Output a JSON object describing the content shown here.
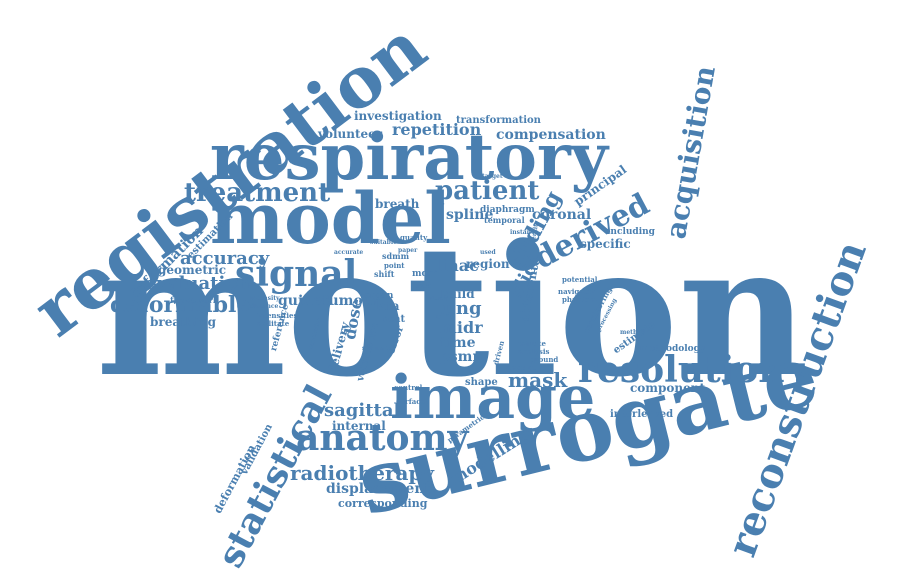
{
  "cloud": {
    "color": "#4a7fb0",
    "background": "#ffffff",
    "words": {
      "motion": "motion",
      "surrogate": "surrogate",
      "registration": "registration",
      "respiratory": "respiratory",
      "model": "model",
      "image": "image",
      "reconstruction": "reconstruction",
      "statistical": "statistical",
      "anatomy": "anatomy",
      "resolution": "resolution",
      "signal": "signal",
      "treatment": "treatment",
      "derived": "derived",
      "acquisition": "acquisition",
      "patient": "patient",
      "sliding": "sliding",
      "slice": "slice",
      "deformable": "deformable",
      "evaluation": "evaluation",
      "accuracy": "accuracy",
      "radiotherapy": "radiotherapy",
      "mask": "mask",
      "sagittal": "sagittal",
      "modelling": "modelling",
      "displacement": "displacement",
      "corresponding": "corresponding",
      "information": "information",
      "deformation": "deformation",
      "validation": "validation",
      "geometric": "geometric",
      "estimation": "estimation",
      "guided": "guided",
      "tumour": "tumour",
      "breathing": "breathing",
      "framework": "framework",
      "volunteer": "volunteer",
      "repetition": "repetition",
      "investigation": "investigation",
      "transformation": "transformation",
      "compensation": "compensation",
      "breath": "breath",
      "spline": "spline",
      "coronal": "coronal",
      "principal": "principal",
      "specific": "specific",
      "including": "including",
      "diaphragm": "diaphragm",
      "temporal": "temporal",
      "linac": "linac",
      "region": "region",
      "lung": "lung",
      "build": "build",
      "midr": "midr",
      "time": "time",
      "psmm": "psmm",
      "cine": "cine",
      "data": "data",
      "xcat": "xcat",
      "dose": "dose",
      "delivery": "delivery",
      "volumetric": "volumetric",
      "error": "error",
      "internal": "internal",
      "shape": "shape",
      "component": "component",
      "interleaved": "interleaved",
      "methodology": "methodology",
      "estimate": "estimate",
      "different": "different",
      "monitoring": "monitoring",
      "navigator": "navigator",
      "phantom": "phantom",
      "potential": "potential",
      "analysis": "analysis",
      "ground": "ground",
      "amount": "amount",
      "minute": "minute",
      "driven": "driven",
      "parametric": "parametric",
      "surface": "surface",
      "control": "control",
      "intensities": "intensities",
      "facilitate": "facilitate",
      "reference": "reference",
      "intensity": "intensity",
      "distance": "distance",
      "organ": "organ",
      "mcsr": "mcsr",
      "shift": "shift",
      "point": "point",
      "sdmm": "sdmm",
      "accurate": "accurate",
      "quality": "quality",
      "instance": "instance",
      "identity": "identity",
      "processing": "processing",
      "method": "method",
      "target": "target",
      "trace": "trace",
      "used": "used",
      "suitable": "suitable",
      "paper": "paper",
      "variability": "variability",
      "simulated": "simulated",
      "study": "study"
    }
  }
}
